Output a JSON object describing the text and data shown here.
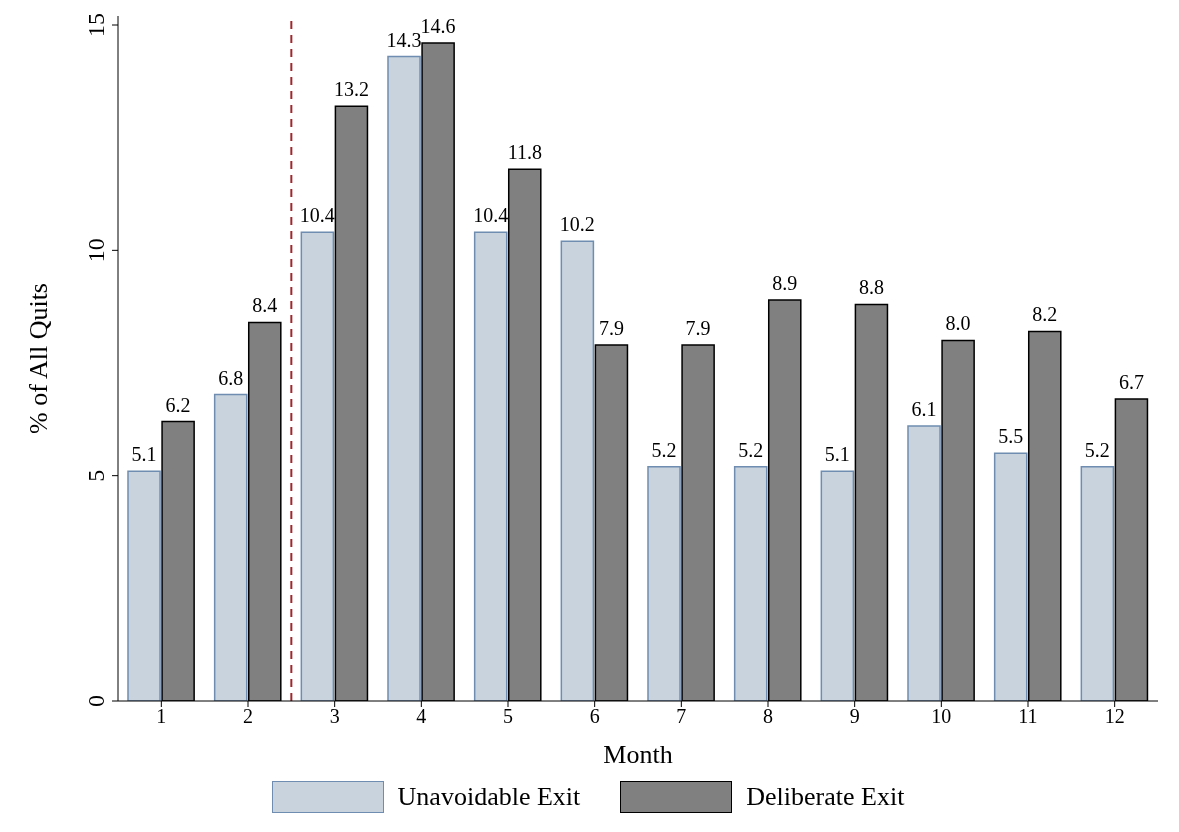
{
  "chart_data": {
    "type": "bar",
    "xlabel": "Month",
    "ylabel": "% of All Quits",
    "x": [
      1,
      2,
      3,
      4,
      5,
      6,
      7,
      8,
      9,
      10,
      11,
      12
    ],
    "xlim": [
      0.5,
      12.5
    ],
    "xticks": [
      1,
      2,
      3,
      4,
      5,
      6,
      7,
      8,
      9,
      10,
      11,
      12
    ],
    "ylim": [
      0,
      15.2
    ],
    "yticks": [
      0,
      5,
      10,
      15
    ],
    "series": [
      {
        "name": "Unavoidable Exit",
        "color": "#c8d3de",
        "values": [
          5.1,
          6.8,
          10.4,
          14.3,
          10.4,
          10.2,
          5.2,
          5.2,
          5.1,
          6.1,
          5.5,
          5.2
        ],
        "value_labels": [
          "5.1",
          "6.8",
          "10.4",
          "14.3",
          "10.4",
          "10.2",
          "5.2",
          "5.2",
          "5.1",
          "6.1",
          "5.5",
          "5.2"
        ]
      },
      {
        "name": "Deliberate Exit",
        "color": "#808080",
        "values": [
          6.2,
          8.4,
          13.2,
          14.6,
          11.8,
          7.9,
          7.9,
          8.9,
          8.8,
          8.0,
          8.2,
          6.7
        ],
        "value_labels": [
          "6.2",
          "8.4",
          "13.2",
          "14.6",
          "11.8",
          "7.9",
          "7.9",
          "8.9",
          "8.8",
          "8.0",
          "8.2",
          "6.7"
        ]
      }
    ],
    "grid": false,
    "legend": "bottom",
    "ref_lines": [
      {
        "axis": "x",
        "value": 2.5,
        "color": "#a0282d",
        "line_style": "dashed"
      }
    ]
  }
}
